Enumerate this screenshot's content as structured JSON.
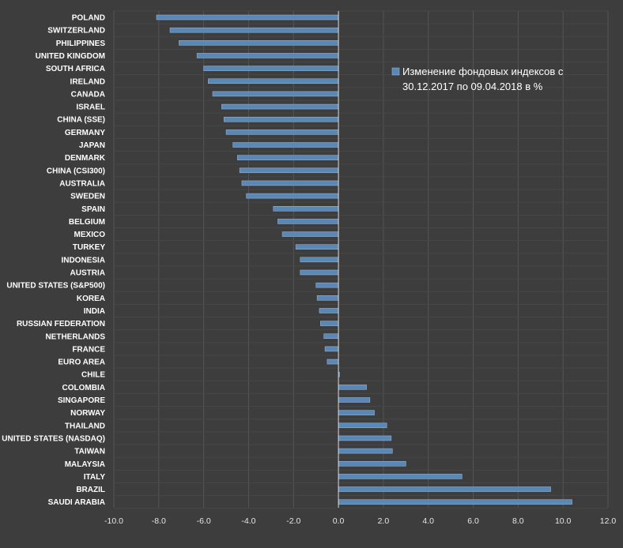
{
  "chart_data": {
    "type": "bar",
    "orientation": "horizontal",
    "categories": [
      "POLAND",
      "SWITZERLAND",
      "PHILIPPINES",
      "UNITED KINGDOM",
      "SOUTH AFRICA",
      "IRELAND",
      "CANADA",
      "ISRAEL",
      "CHINA (SSE)",
      "GERMANY",
      "JAPAN",
      "DENMARK",
      "CHINA (CSI300)",
      "AUSTRALIA",
      "SWEDEN",
      "SPAIN",
      "BELGIUM",
      "MEXICO",
      "TURKEY",
      "INDONESIA",
      "AUSTRIA",
      "UNITED STATES (S&P500)",
      "KOREA",
      "INDIA",
      "RUSSIAN FEDERATION",
      "NETHERLANDS",
      "FRANCE",
      "EURO AREA",
      "CHILE",
      "COLOMBIA",
      "SINGAPORE",
      "NORWAY",
      "THAILAND",
      "UNITED STATES (NASDAQ)",
      "TAIWAN",
      "MALAYSIA",
      "ITALY",
      "BRAZIL",
      "SAUDI ARABIA"
    ],
    "series": [
      {
        "name": "Изменение фондовых индексов с 30.12.2017 по 09.04.2018 в %",
        "color": "#5b87b5",
        "values": [
          -8.1,
          -7.5,
          -7.1,
          -6.3,
          -6.0,
          -5.8,
          -5.6,
          -5.2,
          -5.1,
          -5.0,
          -4.7,
          -4.5,
          -4.4,
          -4.3,
          -4.1,
          -2.9,
          -2.7,
          -2.5,
          -1.9,
          -1.7,
          -1.7,
          -1.0,
          -0.95,
          -0.85,
          -0.8,
          -0.65,
          -0.6,
          -0.5,
          0.05,
          1.25,
          1.4,
          1.6,
          2.15,
          2.35,
          2.4,
          3.0,
          5.5,
          9.45,
          10.4
        ]
      }
    ],
    "xlim": [
      -10.0,
      12.0
    ],
    "xticks": [
      "-10.0",
      "-8.0",
      "-6.0",
      "-4.0",
      "-2.0",
      "0.0",
      "2.0",
      "4.0",
      "6.0",
      "8.0",
      "10.0",
      "12.0"
    ],
    "xtick_values": [
      -10,
      -8,
      -6,
      -4,
      -2,
      0,
      2,
      4,
      6,
      8,
      10,
      12
    ],
    "grid": true,
    "legend": {
      "position": "top-right",
      "lines": [
        "Изменение фондовых индексов с",
        "30.12.2017 по 09.04.2018 в %"
      ]
    }
  }
}
